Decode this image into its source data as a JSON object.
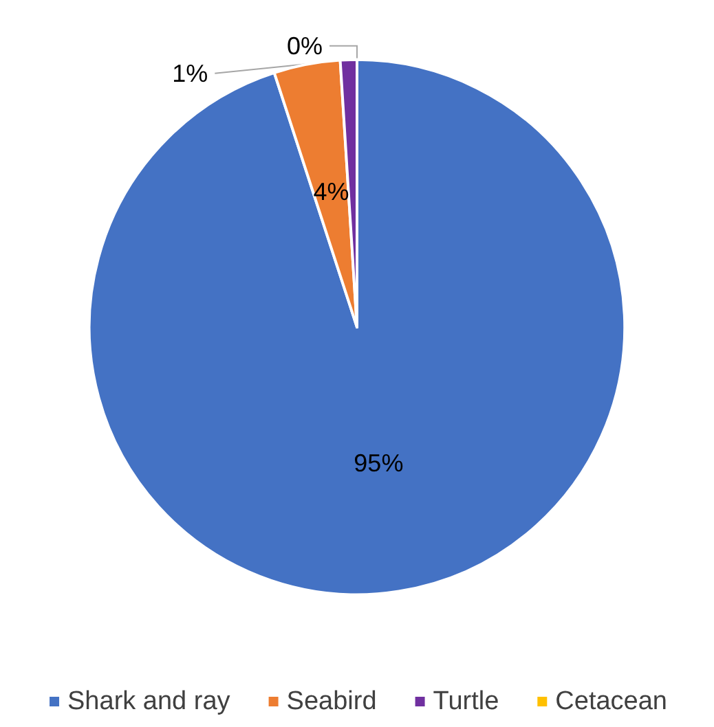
{
  "chart_data": {
    "type": "pie",
    "categories": [
      "Shark and ray",
      "Seabird",
      "Turtle",
      "Cetacean"
    ],
    "values": [
      95,
      4,
      1,
      0
    ],
    "colors": [
      "#4472c4",
      "#ed7d31",
      "#7030a0",
      "#ffc000"
    ],
    "value_labels": [
      "95%",
      "4%",
      "1%",
      "0%"
    ],
    "legend": "bottom"
  }
}
